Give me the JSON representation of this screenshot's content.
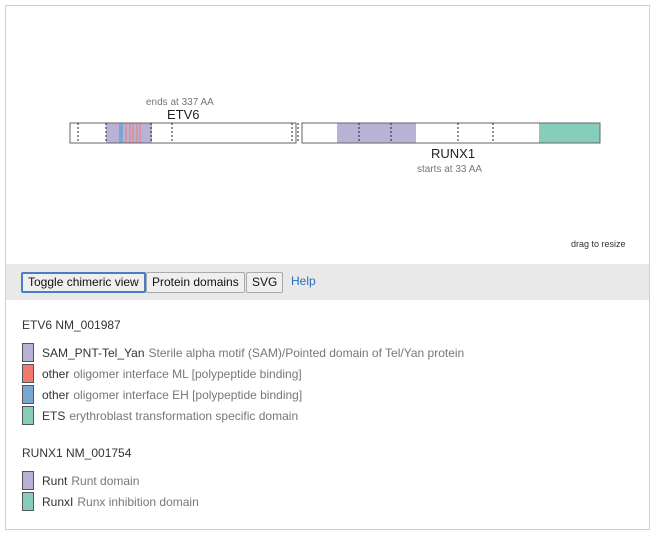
{
  "labels": {
    "etv6_end": "ends at 337 AA",
    "etv6_name": "ETV6",
    "runx1_name": "RUNX1",
    "runx1_start": "starts at 33 AA",
    "drag": "drag to resize"
  },
  "toolbar": {
    "toggle_label": "Toggle chimeric view",
    "domains_label": "Protein domains",
    "svg_label": "SVG",
    "help_label": "Help"
  },
  "colors": {
    "sam": "#b8b3d6",
    "ml": "#f07a6e",
    "eh": "#7aa6d4",
    "ets": "#86cdbb",
    "runt": "#b8b3d6",
    "runxi": "#86cdbb"
  },
  "legend": {
    "etv6": {
      "title": "ETV6 NM_001987",
      "items": [
        {
          "name": "SAM_PNT-Tel_Yan",
          "desc": "Sterile alpha motif (SAM)/Pointed domain of Tel/Yan protein",
          "color": "#b8b3d6"
        },
        {
          "name": "other",
          "desc": "oligomer interface ML [polypeptide binding]",
          "color": "#f07a6e"
        },
        {
          "name": "other",
          "desc": "oligomer interface EH [polypeptide binding]",
          "color": "#7aa6d4"
        },
        {
          "name": "ETS",
          "desc": "erythroblast transformation specific domain",
          "color": "#86cdbb"
        }
      ]
    },
    "runx1": {
      "title": "RUNX1 NM_001754",
      "items": [
        {
          "name": "Runt",
          "desc": "Runt domain",
          "color": "#b8b3d6"
        },
        {
          "name": "RunxI",
          "desc": "Runx inhibition domain",
          "color": "#86cdbb"
        }
      ]
    }
  }
}
